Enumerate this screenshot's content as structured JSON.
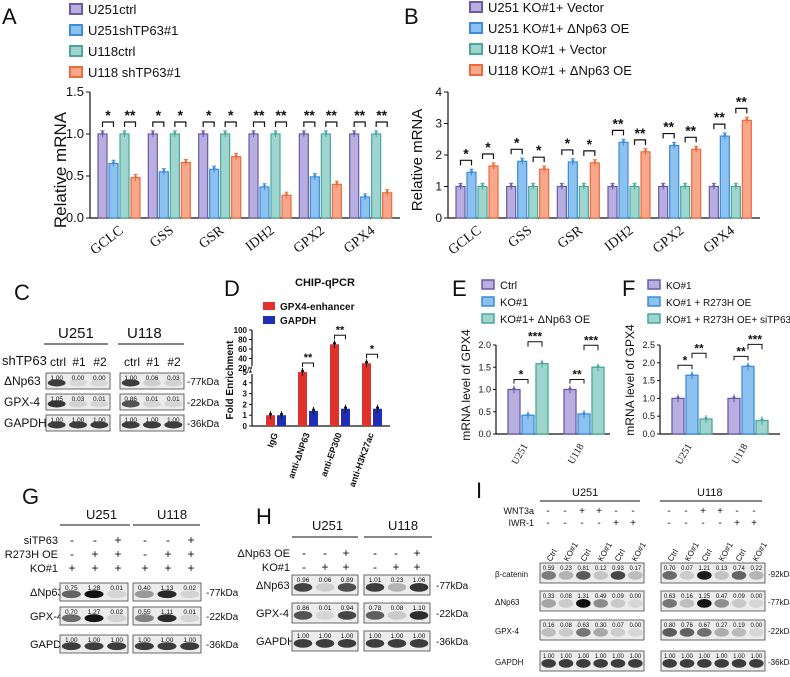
{
  "colors": {
    "purple": "#6b5aa6",
    "blue": "#3d8bdd",
    "teal": "#4aa79a",
    "orange": "#ef6a3a",
    "lightPurple": "#b9aee0",
    "lightBlue": "#8cc1f0",
    "lightTeal": "#9ed6cf",
    "red": "#e0322a",
    "navy": "#1f2fb5"
  },
  "panels": {
    "A": {
      "letter": "A",
      "ylabel": "Relative mRNA",
      "legend": [
        "U251ctrl",
        "U251shTP63#1",
        "U118ctrl",
        "U118 shTP63#1"
      ]
    },
    "B": {
      "letter": "B",
      "ylabel": "Relative mRNA",
      "legend": [
        "U251 KO#1+ Vector",
        "U251 KO#1+ ΔNp63 OE",
        "U118 KO#1 + Vector",
        "U118 KO#1 + ΔNp63 OE"
      ]
    },
    "C": {
      "letter": "C",
      "cell1": "U251",
      "cell2": "U118",
      "row_header": "shTP63",
      "lanes": [
        "ctrl",
        "#1",
        "#2"
      ],
      "rows": [
        "ΔNp63",
        "GPX-4",
        "GAPDH"
      ],
      "kda": [
        "-77kDa",
        "-22kDa",
        "-36kDa"
      ],
      "values_u251": [
        [
          "1.00",
          "0.00",
          "0.00"
        ],
        [
          "1.05",
          "0.03",
          "0.01"
        ],
        [
          "1.00",
          "1.00",
          "1.00"
        ]
      ],
      "values_u118": [
        [
          "1.00",
          "0.06",
          "0.03"
        ],
        [
          "0.86",
          "0.01",
          "0.01"
        ],
        [
          "1.00",
          "1.00",
          "1.00"
        ]
      ]
    },
    "D": {
      "letter": "D",
      "title": "CHIP-qPCR",
      "ylabel": "Fold Enrichment",
      "legend": [
        "GPX4-enhancer",
        "GAPDH"
      ],
      "break_mark": "//"
    },
    "E": {
      "letter": "E",
      "ylabel": "mRNA level of GPX4",
      "legend": [
        "Ctrl",
        "KO#1",
        "KO#1+ ΔNp63 OE"
      ]
    },
    "F": {
      "letter": "F",
      "ylabel": "mRNA level of GPX4",
      "legend": [
        "KO#1",
        "KO#1 + R273H OE",
        "KO#1 + R273H OE+ siTP63"
      ]
    },
    "G": {
      "letter": "G",
      "cell1": "U251",
      "cell2": "U118",
      "treatments": [
        "siTP63",
        "R273H OE",
        "KO#1"
      ],
      "signs": [
        [
          "-",
          "-",
          "+"
        ],
        [
          "-",
          "+",
          "+"
        ],
        [
          "+",
          "+",
          "+"
        ]
      ],
      "rows": [
        "ΔNp63",
        "GPX-4",
        "GAPDH"
      ],
      "kda": [
        "-77kDa",
        "-22kDa",
        "-36kDa"
      ],
      "values_u251": [
        [
          "0.75",
          "1.28",
          "0.01"
        ],
        [
          "0.70",
          "1.27",
          "0.02"
        ],
        [
          "1.00",
          "1.00",
          "1.00"
        ]
      ],
      "values_u118": [
        [
          "0.40",
          "1.13",
          "0.02"
        ],
        [
          "0.55",
          "1.11",
          "0.01"
        ],
        [
          "1.00",
          "1.00",
          "1.00"
        ]
      ]
    },
    "H": {
      "letter": "H",
      "cell1": "U251",
      "cell2": "U118",
      "treatments": [
        "ΔNp63 OE",
        "KO#1"
      ],
      "signs": [
        [
          "-",
          "-",
          "+"
        ],
        [
          "-",
          "+",
          "+"
        ]
      ],
      "rows": [
        "ΔNp63",
        "GPX-4",
        "GAPDH"
      ],
      "kda": [
        "-77kDa",
        "-22kDa",
        "-36kDa"
      ],
      "values_u251": [
        [
          "0.96",
          "0.06",
          "0.89"
        ],
        [
          "0.86",
          "0.01",
          "0.94"
        ],
        [
          "1.00",
          "1.00",
          "1.00"
        ]
      ],
      "values_u118": [
        [
          "1.01",
          "0.23",
          "1.06"
        ],
        [
          "0.78",
          "0.08",
          "1.10"
        ],
        [
          "1.00",
          "1.00",
          "1.00"
        ]
      ]
    },
    "I": {
      "letter": "I",
      "cell1": "U251",
      "cell2": "U118",
      "treatments": [
        "WNT3a",
        "IWR-1"
      ],
      "signs": [
        [
          "-",
          "-",
          "+",
          "+",
          "-",
          "-"
        ],
        [
          "-",
          "-",
          "-",
          "-",
          "+",
          "+"
        ]
      ],
      "lanes": [
        "Ctrl",
        "KO#1",
        "Ctrl",
        "KO#1",
        "Ctrl",
        "KO#1"
      ],
      "rows": [
        "β-catenin",
        "ΔNp63",
        "GPX-4",
        "GAPDH"
      ],
      "kda": [
        "-92kDa",
        "-77kDa",
        "-22kDa",
        "-36kDa"
      ],
      "values_u251": [
        [
          "0.59",
          "0.23",
          "0.81",
          "0.12",
          "0.93",
          "0.17"
        ],
        [
          "0.33",
          "0.08",
          "1.31",
          "0.49",
          "0.09",
          "0.00"
        ],
        [
          "0.16",
          "0.08",
          "0.63",
          "0.30",
          "0.07",
          "0.00"
        ],
        [
          "1.00",
          "1.00",
          "1.00",
          "1.00",
          "1.00",
          "1.00"
        ]
      ],
      "values_u118": [
        [
          "0.70",
          "0.07",
          "1.21",
          "0.13",
          "0.74",
          "0.22"
        ],
        [
          "0.63",
          "0.16",
          "1.25",
          "0.47",
          "0.09",
          "0.00"
        ],
        [
          "0.80",
          "0.76",
          "0.67",
          "0.27",
          "0.19",
          "0.00"
        ],
        [
          "1.00",
          "1.00",
          "1.00",
          "1.00",
          "1.00",
          "1.00"
        ]
      ]
    }
  },
  "chart_data": [
    {
      "id": "A",
      "type": "bar",
      "categories": [
        "GCLC",
        "GSS",
        "GSR",
        "IDH2",
        "GPX2",
        "GPX4"
      ],
      "series": [
        {
          "name": "U251ctrl",
          "values": [
            1.0,
            1.0,
            1.0,
            1.0,
            1.0,
            1.0
          ]
        },
        {
          "name": "U251shTP63#1",
          "values": [
            0.65,
            0.55,
            0.58,
            0.37,
            0.49,
            0.25
          ]
        },
        {
          "name": "U118ctrl",
          "values": [
            1.0,
            1.0,
            1.0,
            1.0,
            1.0,
            1.0
          ]
        },
        {
          "name": "U118 shTP63#1",
          "values": [
            0.48,
            0.66,
            0.73,
            0.27,
            0.4,
            0.3
          ]
        }
      ],
      "significance": [
        [
          "*",
          "**"
        ],
        [
          "*",
          "*"
        ],
        [
          "*",
          "*"
        ],
        [
          "**",
          "**"
        ],
        [
          "**",
          "**"
        ],
        [
          "**",
          "**"
        ]
      ],
      "ylabel": "Relative mRNA",
      "ylim": [
        0.0,
        1.5
      ],
      "yticks": [
        "0.0",
        "0.5",
        "1.0",
        "1.5"
      ]
    },
    {
      "id": "B",
      "type": "bar",
      "categories": [
        "GCLC",
        "GSS",
        "GSR",
        "IDH2",
        "GPX2",
        "GPX4"
      ],
      "series": [
        {
          "name": "U251 KO#1+ Vector",
          "values": [
            1.0,
            1.0,
            1.0,
            1.0,
            1.0,
            1.0
          ]
        },
        {
          "name": "U251 KO#1+ ΔNp63 OE",
          "values": [
            1.45,
            1.8,
            1.78,
            2.4,
            2.3,
            2.6
          ]
        },
        {
          "name": "U118 KO#1 + Vector",
          "values": [
            1.0,
            1.0,
            1.0,
            1.0,
            1.0,
            1.0
          ]
        },
        {
          "name": "U118 KO#1 + ΔNp63 OE",
          "values": [
            1.65,
            1.55,
            1.75,
            2.1,
            2.18,
            3.1
          ]
        }
      ],
      "significance": [
        [
          "*",
          "*"
        ],
        [
          "*",
          "*"
        ],
        [
          "*",
          "*"
        ],
        [
          "**",
          "**"
        ],
        [
          "**",
          "**"
        ],
        [
          "**",
          "**"
        ]
      ],
      "ylabel": "Relative mRNA",
      "ylim": [
        0,
        4
      ],
      "yticks": [
        "0",
        "1",
        "2",
        "3",
        "4"
      ]
    },
    {
      "id": "D",
      "type": "bar",
      "title": "CHIP-qPCR",
      "categories": [
        "IgG",
        "anti-ΔNP63",
        "anti-EP300",
        "anti-H3K27ac"
      ],
      "series": [
        {
          "name": "GPX4-enhancer",
          "values": [
            1.0,
            5.0,
            70.0,
            30.0
          ]
        },
        {
          "name": "GAPDH",
          "values": [
            1.0,
            1.4,
            1.6,
            1.6
          ]
        }
      ],
      "significance": [
        "",
        "**",
        "**",
        "*"
      ],
      "ylabel": "Fold Enrichment",
      "yticks_lower": [
        "0",
        "1",
        "2",
        "3",
        "4",
        "5"
      ],
      "yticks_upper": [
        "20",
        "40",
        "60",
        "80",
        "100"
      ]
    },
    {
      "id": "E",
      "type": "bar",
      "categories": [
        "U251",
        "U118"
      ],
      "series": [
        {
          "name": "Ctrl",
          "values": [
            1.0,
            1.0
          ]
        },
        {
          "name": "KO#1",
          "values": [
            0.42,
            0.45
          ]
        },
        {
          "name": "KO#1+ ΔNp63 OE",
          "values": [
            1.58,
            1.5
          ]
        }
      ],
      "significance": [
        [
          "*",
          "***"
        ],
        [
          "**",
          "***"
        ]
      ],
      "ylabel": "mRNA level of GPX4",
      "ylim": [
        0.0,
        2.0
      ],
      "yticks": [
        "0.0",
        "0.5",
        "1.0",
        "1.5",
        "2.0"
      ]
    },
    {
      "id": "F",
      "type": "bar",
      "categories": [
        "U251",
        "U118"
      ],
      "series": [
        {
          "name": "KO#1",
          "values": [
            1.0,
            1.0
          ]
        },
        {
          "name": "KO#1 + R273H OE",
          "values": [
            1.65,
            1.9
          ]
        },
        {
          "name": "KO#1 + R273H OE+ siTP63",
          "values": [
            0.42,
            0.38
          ]
        }
      ],
      "significance": [
        [
          "*",
          "**"
        ],
        [
          "**",
          "***"
        ]
      ],
      "ylabel": "mRNA level of GPX4",
      "ylim": [
        0.0,
        2.5
      ],
      "yticks": [
        "0.0",
        "0.5",
        "1.0",
        "1.5",
        "2.0",
        "2.5"
      ]
    }
  ]
}
